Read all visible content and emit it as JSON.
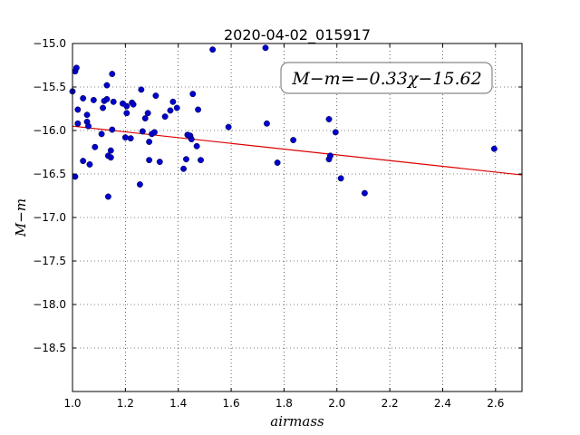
{
  "chart_data": {
    "type": "scatter",
    "title": "2020-04-02_015917",
    "xlabel": "airmass",
    "ylabel": "M−m",
    "xlim": [
      1.0,
      2.7
    ],
    "ylim": [
      -15.0,
      -19.0
    ],
    "y_inverted": true,
    "grid": true,
    "xticks": [
      1.0,
      1.2,
      1.4,
      1.6,
      1.8,
      2.0,
      2.2,
      2.4,
      2.6
    ],
    "xtick_labels": [
      "1.0",
      "1.2",
      "1.4",
      "1.6",
      "1.8",
      "2.0",
      "2.2",
      "2.4",
      "2.6"
    ],
    "yticks": [
      -15.0,
      -15.5,
      -16.0,
      -16.5,
      -17.0,
      -17.5,
      -18.0,
      -18.5
    ],
    "ytick_labels": [
      "−15.0",
      "−15.5",
      "−16.0",
      "−16.5",
      "−17.0",
      "−17.5",
      "−18.0",
      "−18.5"
    ],
    "annotation": "M−m=−0.33χ−15.62",
    "point_color": "#0000cc",
    "fit_color": "#dd0000",
    "fit": {
      "slope": -0.33,
      "intercept": -15.62,
      "x_range": [
        1.0,
        2.7
      ]
    },
    "points": [
      [
        1.0,
        -15.55
      ],
      [
        1.01,
        -15.32
      ],
      [
        1.015,
        -15.28
      ],
      [
        1.01,
        -16.53
      ],
      [
        1.02,
        -15.92
      ],
      [
        1.02,
        -15.76
      ],
      [
        1.04,
        -15.63
      ],
      [
        1.04,
        -16.35
      ],
      [
        1.055,
        -15.82
      ],
      [
        1.055,
        -15.9
      ],
      [
        1.06,
        -15.95
      ],
      [
        1.065,
        -16.39
      ],
      [
        1.08,
        -15.65
      ],
      [
        1.085,
        -16.19
      ],
      [
        1.11,
        -16.04
      ],
      [
        1.115,
        -15.74
      ],
      [
        1.12,
        -15.66
      ],
      [
        1.13,
        -15.64
      ],
      [
        1.13,
        -15.48
      ],
      [
        1.135,
        -16.29
      ],
      [
        1.135,
        -16.76
      ],
      [
        1.145,
        -16.31
      ],
      [
        1.145,
        -16.23
      ],
      [
        1.15,
        -15.35
      ],
      [
        1.15,
        -15.99
      ],
      [
        1.155,
        -15.67
      ],
      [
        1.19,
        -15.69
      ],
      [
        1.2,
        -16.08
      ],
      [
        1.205,
        -15.8
      ],
      [
        1.205,
        -15.72
      ],
      [
        1.22,
        -16.09
      ],
      [
        1.225,
        -15.68
      ],
      [
        1.23,
        -15.7
      ],
      [
        1.255,
        -16.62
      ],
      [
        1.26,
        -15.53
      ],
      [
        1.265,
        -16.01
      ],
      [
        1.275,
        -15.86
      ],
      [
        1.285,
        -15.8
      ],
      [
        1.29,
        -16.34
      ],
      [
        1.29,
        -16.13
      ],
      [
        1.3,
        -16.04
      ],
      [
        1.31,
        -16.02
      ],
      [
        1.315,
        -15.6
      ],
      [
        1.33,
        -16.36
      ],
      [
        1.35,
        -15.84
      ],
      [
        1.37,
        -15.77
      ],
      [
        1.38,
        -15.67
      ],
      [
        1.395,
        -15.74
      ],
      [
        1.42,
        -16.44
      ],
      [
        1.43,
        -16.33
      ],
      [
        1.435,
        -16.05
      ],
      [
        1.445,
        -16.07
      ],
      [
        1.445,
        -16.06
      ],
      [
        1.45,
        -16.1
      ],
      [
        1.455,
        -15.58
      ],
      [
        1.47,
        -16.18
      ],
      [
        1.475,
        -15.76
      ],
      [
        1.485,
        -16.34
      ],
      [
        1.53,
        -15.07
      ],
      [
        1.59,
        -15.96
      ],
      [
        1.73,
        -15.05
      ],
      [
        1.735,
        -15.92
      ],
      [
        1.775,
        -16.37
      ],
      [
        1.835,
        -16.11
      ],
      [
        1.97,
        -15.87
      ],
      [
        1.97,
        -16.33
      ],
      [
        1.975,
        -16.29
      ],
      [
        1.995,
        -16.02
      ],
      [
        2.015,
        -16.55
      ],
      [
        2.105,
        -16.72
      ],
      [
        2.595,
        -16.21
      ]
    ]
  }
}
